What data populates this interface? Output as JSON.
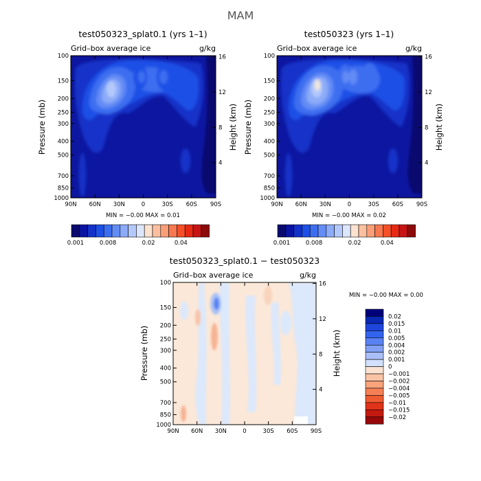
{
  "page_title": "MAM",
  "colors": {
    "seq": [
      "#0a0a6e",
      "#0a14a0",
      "#1432c8",
      "#1e50e6",
      "#3c6ef0",
      "#648cf5",
      "#8cabf8",
      "#b4c9fb",
      "#dce6fd",
      "#fde2d0",
      "#fcc0a0",
      "#fa9e78",
      "#f87850",
      "#f55028",
      "#e62a14",
      "#c81414",
      "#8c0a0a"
    ],
    "div": [
      "#00007a",
      "#0a28b4",
      "#1e46dc",
      "#3264ee",
      "#5a82f2",
      "#82a0f5",
      "#aabef8",
      "#d2e0fc",
      "#fbe3d2",
      "#f9c4a5",
      "#f7a37c",
      "#f58055",
      "#f05c32",
      "#e1321a",
      "#c31a10",
      "#96080a"
    ]
  },
  "chart_data": [
    {
      "type": "heatmap",
      "panel": "top-left",
      "title": "test050323_splat0.1 (yrs 1–1)",
      "subtitle_left": "Grid–box average ice",
      "subtitle_right": "g/kg",
      "ylabel": "Pressure (mb)",
      "ylabel_right": "Height (km)",
      "x_ticks": [
        "90N",
        "60N",
        "30N",
        "0",
        "30S",
        "60S",
        "90S"
      ],
      "y_ticks": [
        "100",
        "150",
        "200",
        "250",
        "300",
        "400",
        "500",
        "700",
        "850",
        "1000"
      ],
      "y_ticks_right": [
        "16",
        "12",
        "8",
        "4"
      ],
      "stats": "MIN = −0.00   MAX =   0.01",
      "colorbar_labels": [
        "0.001",
        "0.008",
        "0.02",
        "0.04"
      ],
      "peak_value": 0.01
    },
    {
      "type": "heatmap",
      "panel": "top-right",
      "title": "test050323 (yrs 1–1)",
      "subtitle_left": "Grid–box average ice",
      "subtitle_right": "g/kg",
      "ylabel": "Pressure (mb)",
      "ylabel_right": "Height (km)",
      "x_ticks": [
        "90N",
        "60N",
        "30N",
        "0",
        "30S",
        "60S",
        "90S"
      ],
      "y_ticks": [
        "100",
        "150",
        "200",
        "250",
        "300",
        "400",
        "500",
        "700",
        "850",
        "1000"
      ],
      "y_ticks_right": [
        "16",
        "12",
        "8",
        "4"
      ],
      "stats": "MIN = −0.00   MAX =   0.02",
      "colorbar_labels": [
        "0.001",
        "0.008",
        "0.02",
        "0.04"
      ],
      "peak_value": 0.02
    },
    {
      "type": "heatmap",
      "panel": "bottom",
      "title": "test050323_splat0.1 − test050323",
      "subtitle_left": "Grid–box average ice",
      "subtitle_right": "g/kg",
      "ylabel": "Pressure (mb)",
      "ylabel_right": "Height (km)",
      "x_ticks": [
        "90N",
        "60N",
        "30N",
        "0",
        "30S",
        "60S",
        "90S"
      ],
      "y_ticks": [
        "100",
        "150",
        "200",
        "250",
        "300",
        "400",
        "500",
        "700",
        "850",
        "1000"
      ],
      "y_ticks_right": [
        "16",
        "12",
        "8",
        "4"
      ],
      "stats": "MIN =   −0.00   MAX =    0.00",
      "colorbar_labels": [
        "0.02",
        "0.015",
        "0.01",
        "0.005",
        "0.004",
        "0.002",
        "0.001",
        "0",
        "−0.001",
        "−0.002",
        "−0.004",
        "−0.005",
        "−0.01",
        "−0.015",
        "−0.02"
      ]
    }
  ]
}
